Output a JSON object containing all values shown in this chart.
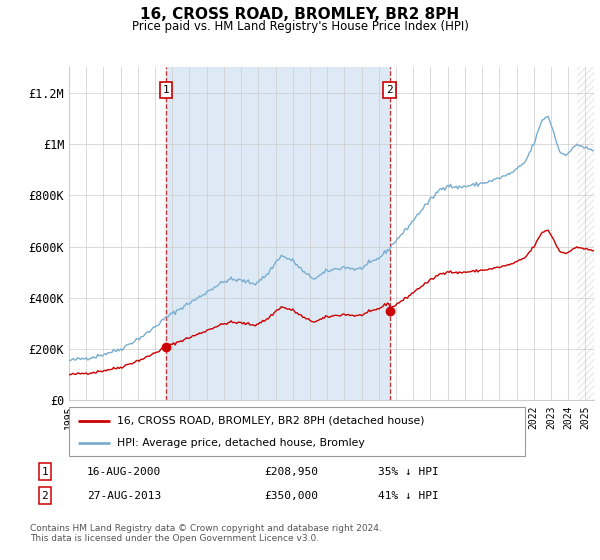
{
  "title": "16, CROSS ROAD, BROMLEY, BR2 8PH",
  "subtitle": "Price paid vs. HM Land Registry's House Price Index (HPI)",
  "ylim": [
    0,
    1300000
  ],
  "yticks": [
    0,
    200000,
    400000,
    600000,
    800000,
    1000000,
    1200000
  ],
  "ytick_labels": [
    "£0",
    "£200K",
    "£400K",
    "£600K",
    "£800K",
    "£1M",
    "£1.2M"
  ],
  "x_start_year": 1995,
  "x_end_year": 2025,
  "sale1_year": 2000.625,
  "sale1_price": 208950,
  "sale2_year": 2013.625,
  "sale2_price": 350000,
  "legend_red": "16, CROSS ROAD, BROMLEY, BR2 8PH (detached house)",
  "legend_blue": "HPI: Average price, detached house, Bromley",
  "annotation1_date": "16-AUG-2000",
  "annotation1_price": "£208,950",
  "annotation1_hpi": "35% ↓ HPI",
  "annotation2_date": "27-AUG-2013",
  "annotation2_price": "£350,000",
  "annotation2_hpi": "41% ↓ HPI",
  "footnote": "Contains HM Land Registry data © Crown copyright and database right 2024.\nThis data is licensed under the Open Government Licence v3.0.",
  "line_color_red": "#cc0000",
  "line_color_blue": "#7aadce",
  "shaded_color": "#ddeaf6",
  "grid_color": "#cccccc",
  "hatch_color": "#dddddd"
}
